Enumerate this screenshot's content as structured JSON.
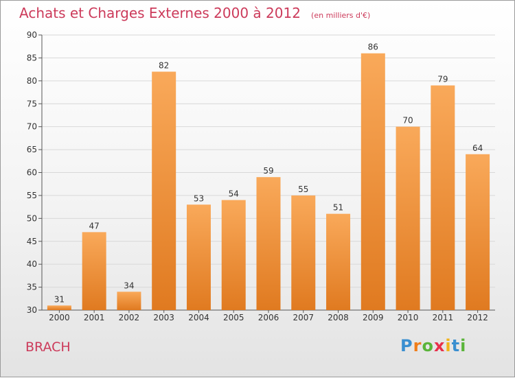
{
  "chart_data": {
    "type": "bar",
    "title": "Achats et Charges Externes 2000 à 2012",
    "subtitle": "(en milliers d'€)",
    "categories": [
      "2000",
      "2001",
      "2002",
      "2003",
      "2004",
      "2005",
      "2006",
      "2007",
      "2008",
      "2009",
      "2010",
      "2011",
      "2012"
    ],
    "values": [
      31,
      47,
      34,
      82,
      53,
      54,
      59,
      55,
      51,
      86,
      70,
      79,
      64
    ],
    "ylim": [
      30,
      90
    ],
    "yticks": [
      30,
      35,
      40,
      45,
      50,
      55,
      60,
      65,
      70,
      75,
      80,
      85,
      90
    ],
    "grid": true,
    "colors": {
      "bar_light": "#f9a95a",
      "bar_dark": "#e07a20",
      "title": "#cc3a5a"
    }
  },
  "footer": {
    "commune": "BRACH",
    "logo": {
      "letters": [
        "P",
        "r",
        "o",
        "x",
        "i",
        "t",
        "i"
      ],
      "colors": [
        "#3a8fd0",
        "#f07d1a",
        "#5ab43a",
        "#e8304a",
        "#f2b31a",
        "#3a8fd0",
        "#5ab43a"
      ]
    }
  }
}
